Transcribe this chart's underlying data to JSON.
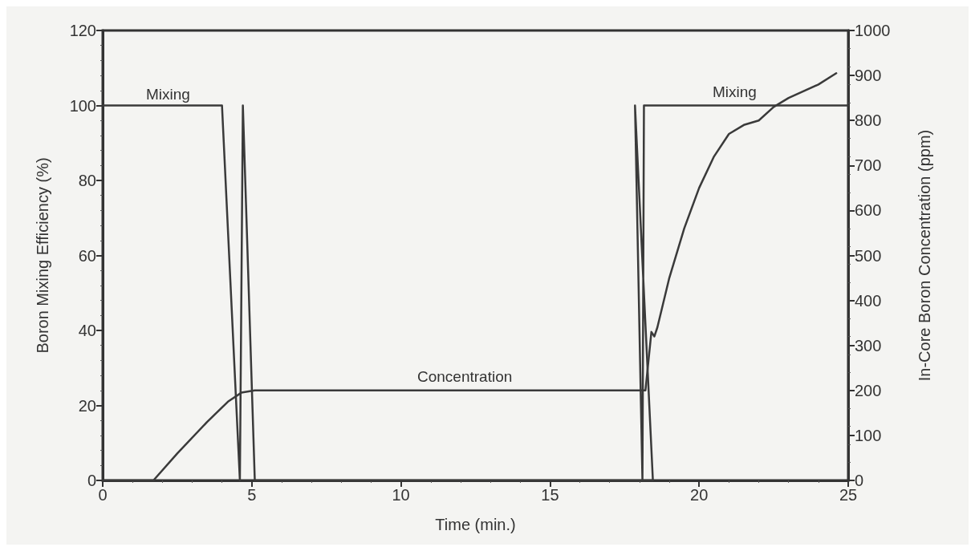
{
  "chart_data": {
    "type": "line",
    "xlabel": "Time (min.)",
    "ylabel": "Boron Mixing Efficiency (%)",
    "y2label": "In-Core Boron Concentration (ppm)",
    "series": [
      {
        "color": "#3a3a3a",
        "x": [
          0,
          4.0,
          4.6,
          4.7,
          5.1,
          18.45,
          17.85,
          18.1,
          18.15,
          25
        ],
        "values": [
          100,
          100,
          0,
          100,
          0,
          0,
          100,
          0,
          100,
          100
        ]
      },
      {
        "color": "#3a3a3a",
        "axis": "y2",
        "x": [
          0,
          1.7,
          2.5,
          3.5,
          4.2,
          4.65,
          5.1,
          18.2,
          18.4,
          18.5,
          18.6,
          19.0,
          19.5,
          20.0,
          20.5,
          21.0,
          21.5,
          22.0,
          22.5,
          23.0,
          24.0,
          24.6
        ],
        "values": [
          0,
          0,
          60,
          130,
          175,
          195,
          200,
          200,
          330,
          320,
          340,
          450,
          560,
          650,
          720,
          770,
          790,
          800,
          830,
          850,
          880,
          905
        ]
      }
    ],
    "annotations": [
      "Mixing",
      "Concentration",
      "Mixing"
    ],
    "xlim": [
      0,
      25
    ],
    "xticks": [
      0,
      5,
      10,
      15,
      20,
      25
    ],
    "ylim": [
      0,
      120
    ],
    "yticks": [
      0,
      20,
      40,
      60,
      80,
      100,
      120
    ],
    "y2lim": [
      0,
      1000
    ],
    "y2ticks": [
      0,
      100,
      200,
      300,
      400,
      500,
      600,
      700,
      800,
      900,
      1000
    ],
    "grid": false,
    "marker": "none",
    "line_style": "solid"
  }
}
